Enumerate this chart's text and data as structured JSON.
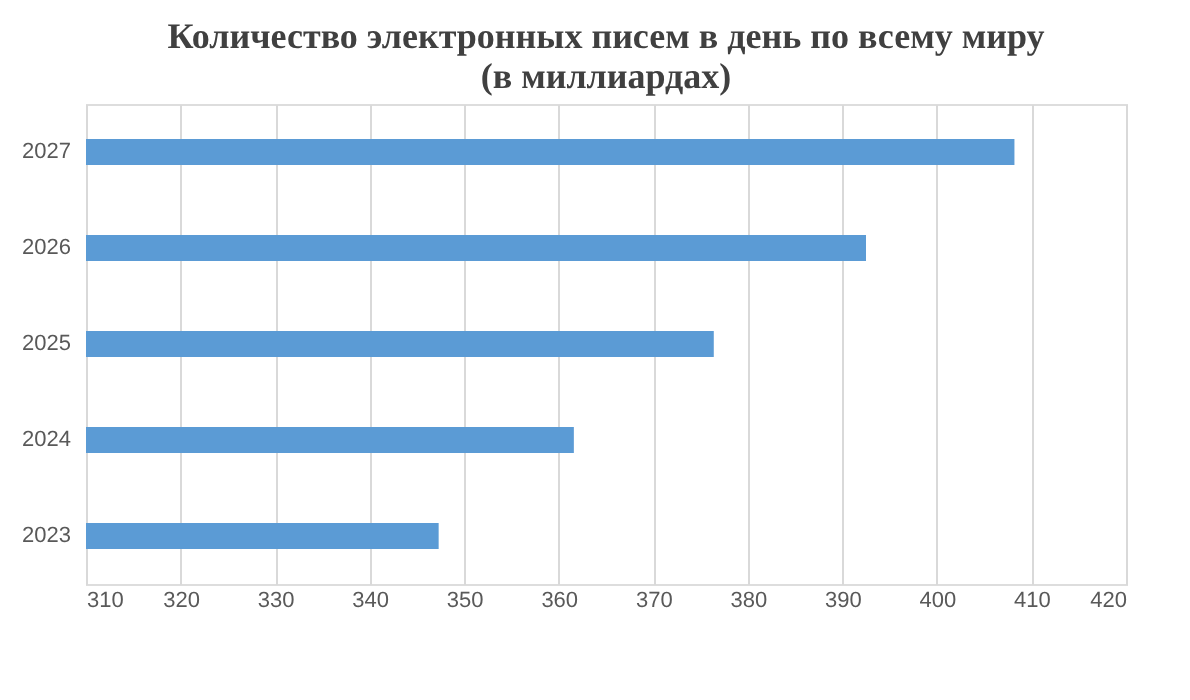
{
  "chart_data": {
    "type": "bar",
    "orientation": "horizontal",
    "title": "Количество электронных писем в день по всему миру\n(в миллиардах)",
    "categories": [
      "2027",
      "2026",
      "2025",
      "2024",
      "2023"
    ],
    "values": [
      408.2,
      392.5,
      376.4,
      361.6,
      347.3
    ],
    "color": "#5b9bd5",
    "xlim": [
      310,
      420
    ],
    "xticks": [
      310,
      320,
      330,
      340,
      350,
      360,
      370,
      380,
      390,
      400,
      410,
      420
    ],
    "grid": "x"
  }
}
